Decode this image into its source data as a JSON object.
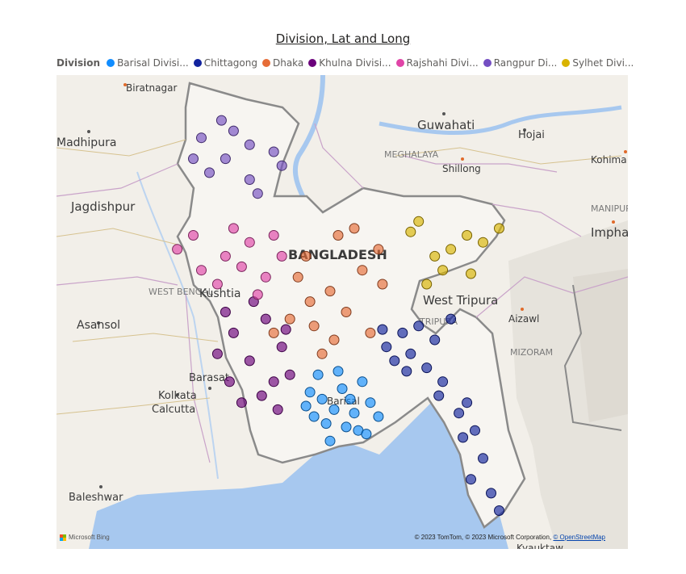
{
  "title": "Division, Lat and Long",
  "legend": {
    "title": "Division",
    "items": [
      {
        "label": "Barisal Divisi...",
        "color": "#118dff"
      },
      {
        "label": "Chittagong",
        "color": "#12239e"
      },
      {
        "label": "Dhaka",
        "color": "#e66c37"
      },
      {
        "label": "Khulna Divisi...",
        "color": "#6b007b"
      },
      {
        "label": "Rajshahi Divi...",
        "color": "#e044a7"
      },
      {
        "label": "Rangpur Di...",
        "color": "#744ec2"
      },
      {
        "label": "Sylhet Divi...",
        "color": "#d9b300"
      }
    ]
  },
  "map": {
    "places": [
      "Biratnagar",
      "Guwahati",
      "Hojai",
      "Madhipura",
      "MEGHALAYA",
      "Shillong",
      "Kohima",
      "Jagdishpur",
      "MANIPUR",
      "Imphal",
      "BANGLADESH",
      "West Tripura",
      "WEST BENGAL",
      "Kushtia",
      "Asansol",
      "TRIPURA",
      "Aizawl",
      "MIZORAM",
      "Barasat",
      "Kolkata",
      "Calcutta",
      "Barisal",
      "Baleshwar",
      "Kyauktaw"
    ],
    "attribution": "© 2023 TomTom, © 2023 Microsoft Corporation,",
    "attribution_link": "© OpenStreetMap",
    "logo": "Microsoft Bing"
  },
  "chart_data": {
    "type": "scatter",
    "title": "Division, Lat and Long",
    "legend_position": "top-left",
    "basemap": "Bing road map",
    "series": [
      {
        "name": "Barisal Divisi...",
        "color": "#118dff",
        "points": [
          [
            90.35,
            22.7
          ],
          [
            90.1,
            22.55
          ],
          [
            90.25,
            22.4
          ],
          [
            90.5,
            22.35
          ],
          [
            90.6,
            22.8
          ],
          [
            90.05,
            22.9
          ],
          [
            90.4,
            22.15
          ],
          [
            90.15,
            22.2
          ],
          [
            90.7,
            22.5
          ],
          [
            89.95,
            22.65
          ],
          [
            90.3,
            22.95
          ],
          [
            90.55,
            22.1
          ],
          [
            90.2,
            21.95
          ],
          [
            90.8,
            22.3
          ],
          [
            90.0,
            22.3
          ],
          [
            90.45,
            22.55
          ],
          [
            89.9,
            22.45
          ],
          [
            90.65,
            22.05
          ]
        ]
      },
      {
        "name": "Chittagong",
        "color": "#12239e",
        "points": [
          [
            91.8,
            22.35
          ],
          [
            91.6,
            22.8
          ],
          [
            91.4,
            23.0
          ],
          [
            91.2,
            23.2
          ],
          [
            91.1,
            23.5
          ],
          [
            91.0,
            23.1
          ],
          [
            90.9,
            23.3
          ],
          [
            91.5,
            23.4
          ],
          [
            91.7,
            23.7
          ],
          [
            91.9,
            22.5
          ],
          [
            92.0,
            22.1
          ],
          [
            92.1,
            21.7
          ],
          [
            91.95,
            21.4
          ],
          [
            92.2,
            21.2
          ],
          [
            92.3,
            20.95
          ],
          [
            91.85,
            22.0
          ],
          [
            91.3,
            23.6
          ],
          [
            90.85,
            23.55
          ],
          [
            91.15,
            22.95
          ],
          [
            91.55,
            22.6
          ]
        ]
      },
      {
        "name": "Dhaka",
        "color": "#e66c37",
        "points": [
          [
            90.4,
            23.8
          ],
          [
            90.2,
            24.1
          ],
          [
            90.6,
            24.4
          ],
          [
            90.0,
            23.6
          ],
          [
            89.9,
            24.6
          ],
          [
            90.8,
            24.7
          ],
          [
            90.3,
            24.9
          ],
          [
            90.7,
            23.5
          ],
          [
            90.1,
            23.2
          ],
          [
            89.7,
            23.7
          ],
          [
            89.5,
            23.5
          ],
          [
            90.5,
            25.0
          ],
          [
            89.95,
            23.95
          ],
          [
            90.85,
            24.2
          ],
          [
            90.25,
            23.4
          ],
          [
            89.8,
            24.3
          ]
        ]
      },
      {
        "name": "Khulna Divisi...",
        "color": "#6b007b",
        "points": [
          [
            89.5,
            22.8
          ],
          [
            89.2,
            23.1
          ],
          [
            89.0,
            23.5
          ],
          [
            89.35,
            22.6
          ],
          [
            89.6,
            23.3
          ],
          [
            88.9,
            23.8
          ],
          [
            89.1,
            22.5
          ],
          [
            89.4,
            23.7
          ],
          [
            88.8,
            23.2
          ],
          [
            89.7,
            22.9
          ],
          [
            89.25,
            23.95
          ],
          [
            89.55,
            22.4
          ],
          [
            88.95,
            22.8
          ],
          [
            89.65,
            23.55
          ]
        ]
      },
      {
        "name": "Rajshahi Divi...",
        "color": "#e044a7",
        "points": [
          [
            88.6,
            24.4
          ],
          [
            88.9,
            24.6
          ],
          [
            89.2,
            24.8
          ],
          [
            89.4,
            24.3
          ],
          [
            88.3,
            24.7
          ],
          [
            89.0,
            25.0
          ],
          [
            89.6,
            24.6
          ],
          [
            88.8,
            24.2
          ],
          [
            89.3,
            24.05
          ],
          [
            88.5,
            24.9
          ],
          [
            89.1,
            24.45
          ],
          [
            89.5,
            24.9
          ]
        ]
      },
      {
        "name": "Rangpur Di...",
        "color": "#744ec2",
        "points": [
          [
            89.2,
            25.7
          ],
          [
            88.9,
            26.0
          ],
          [
            89.5,
            26.1
          ],
          [
            88.6,
            26.3
          ],
          [
            89.3,
            25.5
          ],
          [
            88.7,
            25.8
          ],
          [
            89.0,
            26.4
          ],
          [
            89.6,
            25.9
          ],
          [
            88.5,
            26.0
          ],
          [
            89.2,
            26.2
          ],
          [
            88.85,
            26.55
          ]
        ]
      },
      {
        "name": "Sylhet Divi...",
        "color": "#d9b300",
        "points": [
          [
            91.9,
            24.9
          ],
          [
            91.7,
            24.7
          ],
          [
            91.5,
            24.6
          ],
          [
            92.1,
            24.8
          ],
          [
            92.3,
            25.0
          ],
          [
            91.6,
            24.4
          ],
          [
            91.4,
            24.2
          ],
          [
            91.3,
            25.1
          ],
          [
            91.95,
            24.35
          ],
          [
            91.2,
            24.95
          ]
        ]
      }
    ]
  }
}
